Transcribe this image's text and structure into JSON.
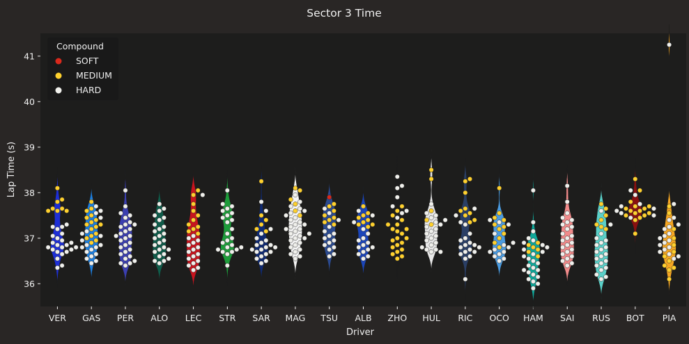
{
  "chart_data": {
    "type": "violin-swarm",
    "title": "Sector 3 Time",
    "xlabel": "Driver",
    "ylabel": "Lap Time (s)",
    "ylim": [
      35.5,
      41.5
    ],
    "yticks": [
      36,
      37,
      38,
      39,
      40,
      41
    ],
    "grid": false,
    "legend": {
      "title": "Compound",
      "position": "top-left",
      "entries": [
        {
          "name": "SOFT",
          "color": "#da291c"
        },
        {
          "name": "MEDIUM",
          "color": "#ffd12e"
        },
        {
          "name": "HARD",
          "color": "#f0f0ec"
        }
      ]
    },
    "drivers": [
      {
        "code": "VER",
        "color": "#1e2fd6",
        "medium": [
          38.1,
          37.85,
          37.8,
          37.65,
          37.65,
          37.6,
          37.6,
          37.6
        ],
        "hard": [
          37.3,
          37.25,
          37.25,
          37.2,
          37.1,
          37.05,
          37.0,
          36.95,
          36.9,
          36.9,
          36.85,
          36.85,
          36.8,
          36.8,
          36.8,
          36.75,
          36.75,
          36.7,
          36.7,
          36.65,
          36.55,
          36.4,
          36.35
        ]
      },
      {
        "code": "GAS",
        "color": "#1c7fe0",
        "medium": [
          37.8,
          37.65,
          37.6,
          37.5,
          37.45,
          37.4,
          37.35,
          37.3,
          37.3,
          37.25,
          37.2,
          37.1,
          37.05,
          37.0,
          36.95,
          36.9
        ],
        "hard": [
          37.7,
          37.6,
          37.55,
          37.45,
          37.15,
          37.1,
          37.05,
          36.95,
          36.85,
          36.85,
          36.8,
          36.8,
          36.75,
          36.7,
          36.65,
          36.6,
          36.55,
          36.5,
          36.45
        ]
      },
      {
        "code": "PER",
        "color": "#3b3fb0",
        "medium": [],
        "hard": [
          38.05,
          37.7,
          37.55,
          37.5,
          37.45,
          37.35,
          37.3,
          37.3,
          37.25,
          37.2,
          37.15,
          37.1,
          37.05,
          37.05,
          37.0,
          36.95,
          36.9,
          36.85,
          36.8,
          36.75,
          36.7,
          36.65,
          36.6,
          36.55,
          36.5,
          36.45,
          36.45,
          36.4
        ]
      },
      {
        "code": "ALO",
        "color": "#0f5c4a",
        "medium": [],
        "hard": [
          37.75,
          37.65,
          37.6,
          37.5,
          37.45,
          37.4,
          37.3,
          37.25,
          37.2,
          37.15,
          37.1,
          37.05,
          37.0,
          36.95,
          36.9,
          36.85,
          36.8,
          36.75,
          36.75,
          36.7,
          36.65,
          36.6,
          36.55,
          36.5,
          36.5,
          36.45
        ]
      },
      {
        "code": "LEC",
        "color": "#c8141e",
        "medium": [
          38.05,
          37.95,
          37.75,
          37.6,
          37.5,
          37.4,
          37.3,
          37.25,
          37.2,
          37.15,
          37.1
        ],
        "hard": [
          37.95,
          37.05,
          37.0,
          36.95,
          36.9,
          36.85,
          36.8,
          36.75,
          36.7,
          36.65,
          36.6,
          36.55,
          36.5,
          36.45,
          36.4,
          36.35,
          36.3
        ]
      },
      {
        "code": "STR",
        "color": "#1d9c3a",
        "medium": [],
        "hard": [
          38.05,
          37.75,
          37.7,
          37.65,
          37.6,
          37.55,
          37.5,
          37.45,
          37.4,
          37.35,
          37.2,
          37.1,
          37.0,
          36.95,
          36.9,
          36.85,
          36.8,
          36.8,
          36.75,
          36.75,
          36.7,
          36.7,
          36.65,
          36.4
        ]
      },
      {
        "code": "SAR",
        "color": "#0f2a73",
        "medium": [
          38.25,
          37.5,
          37.4,
          37.3,
          37.2,
          37.15
        ],
        "hard": [
          37.8,
          37.6,
          37.2,
          37.1,
          37.0,
          36.95,
          36.9,
          36.85,
          36.85,
          36.8,
          36.8,
          36.75,
          36.75,
          36.7,
          36.7,
          36.65,
          36.6,
          36.55,
          36.5,
          36.45
        ]
      },
      {
        "code": "MAG",
        "color": "#f4f4f4",
        "medium": [
          38.1,
          38.05,
          37.85,
          37.75,
          37.6,
          37.5
        ],
        "hard": [
          37.95,
          37.8,
          37.7,
          37.65,
          37.6,
          37.55,
          37.5,
          37.45,
          37.4,
          37.35,
          37.3,
          37.3,
          37.25,
          37.2,
          37.2,
          37.15,
          37.1,
          37.1,
          37.05,
          37.0,
          37.0,
          36.95,
          36.9,
          36.85,
          36.8,
          36.75,
          36.7,
          36.65,
          36.6,
          36.55
        ]
      },
      {
        "code": "TSU",
        "color": "#2b4a8f",
        "soft": [
          37.9
        ],
        "medium": [
          37.75,
          37.7,
          37.6,
          37.5,
          37.45,
          37.4,
          37.35,
          37.3
        ],
        "hard": [
          37.65,
          37.55,
          37.4,
          37.25,
          37.15,
          37.1,
          37.05,
          37.0,
          36.95,
          36.9,
          36.85,
          36.8,
          36.75,
          36.65,
          36.6
        ]
      },
      {
        "code": "ALB",
        "color": "#1b45b8",
        "medium": [
          37.7,
          37.55,
          37.5,
          37.45,
          37.4,
          37.35,
          37.3,
          37.3,
          37.25
        ],
        "hard": [
          37.6,
          37.5,
          37.35,
          37.2,
          37.1,
          37.0,
          36.95,
          36.9,
          36.85,
          36.8,
          36.8,
          36.75,
          36.7,
          36.65,
          36.6,
          36.55
        ]
      },
      {
        "code": "ZHO",
        "color": "#1c1c1c",
        "medium": [
          37.7,
          37.6,
          37.5,
          37.4,
          37.3,
          37.3,
          37.2,
          37.2,
          37.15,
          37.1,
          37.0,
          37.0,
          36.95,
          36.9,
          36.85,
          36.8,
          36.75,
          36.7,
          36.65,
          36.6,
          36.55
        ],
        "hard": [
          38.35,
          38.15,
          38.1,
          37.9,
          37.7,
          37.6,
          37.55,
          37.45
        ]
      },
      {
        "code": "HUL",
        "color": "#e8e8e8",
        "medium": [
          38.5,
          38.3,
          37.6,
          37.4,
          37.3
        ],
        "hard": [
          37.75,
          37.55,
          37.5,
          37.45,
          37.4,
          37.35,
          37.3,
          37.25,
          37.2,
          37.15,
          37.1,
          37.05,
          37.0,
          36.95,
          36.9,
          36.85,
          36.8,
          36.75,
          36.75,
          36.7,
          36.7
        ]
      },
      {
        "code": "RIC",
        "color": "#2a3f66",
        "medium": [
          38.3,
          38.25,
          38.0,
          37.65,
          37.6,
          37.55,
          37.5,
          37.4,
          37.35
        ],
        "hard": [
          37.65,
          37.5,
          37.35,
          37.3,
          37.1,
          37.0,
          36.95,
          36.9,
          36.85,
          36.85,
          36.8,
          36.8,
          36.75,
          36.7,
          36.7,
          36.65,
          36.6,
          36.55,
          36.1
        ]
      },
      {
        "code": "OCO",
        "color": "#4a9be0",
        "medium": [
          38.1,
          37.55,
          37.45,
          37.4,
          37.3,
          37.25,
          37.2,
          37.1,
          37.0,
          36.9,
          36.8
        ],
        "hard": [
          37.4,
          37.35,
          37.3,
          37.1,
          36.9,
          36.85,
          36.8,
          36.75,
          36.7,
          36.7,
          36.65,
          36.6,
          36.55,
          36.5
        ]
      },
      {
        "code": "HAM",
        "color": "#0fa89a",
        "medium": [
          36.9,
          36.85,
          36.8,
          36.75,
          36.7,
          36.6
        ],
        "hard": [
          38.05,
          37.35,
          37.15,
          37.0,
          36.95,
          36.9,
          36.85,
          36.8,
          36.75,
          36.7,
          36.65,
          36.6,
          36.55,
          36.5,
          36.45,
          36.4,
          36.35,
          36.3,
          36.3,
          36.25,
          36.2,
          36.15,
          36.1,
          36.05,
          36.0,
          35.9
        ]
      },
      {
        "code": "SAI",
        "color": "#f08a8a",
        "medium": [],
        "hard": [
          38.15,
          37.8,
          37.55,
          37.45,
          37.4,
          37.35,
          37.3,
          37.25,
          37.2,
          37.1,
          37.05,
          37.0,
          36.95,
          36.9,
          36.85,
          36.8,
          36.75,
          36.7,
          36.65,
          36.6,
          36.55,
          36.5,
          36.45,
          36.4
        ]
      },
      {
        "code": "RUS",
        "color": "#5ad0c8",
        "medium": [
          37.75,
          37.65,
          37.5,
          37.4,
          37.3,
          37.25,
          37.2
        ],
        "hard": [
          37.6,
          37.3,
          37.1,
          37.0,
          36.95,
          36.9,
          36.85,
          36.8,
          36.75,
          36.7,
          36.65,
          36.6,
          36.55,
          36.5,
          36.45,
          36.4,
          36.35,
          36.3,
          36.2,
          36.15,
          36.1
        ]
      },
      {
        "code": "BOT",
        "color": "#8a1010",
        "medium": [
          38.3,
          38.05,
          37.8,
          37.7,
          37.7,
          37.65,
          37.65,
          37.6,
          37.6,
          37.55,
          37.55,
          37.5,
          37.5,
          37.45,
          37.4,
          37.1
        ],
        "hard": [
          38.05,
          37.95,
          37.75,
          37.7,
          37.65,
          37.6,
          37.55,
          37.5,
          37.45
        ]
      },
      {
        "code": "PIA",
        "color": "#f5a623",
        "medium": [
          37.7,
          37.55,
          37.2,
          37.0,
          36.85,
          36.7,
          36.6,
          36.5,
          36.4,
          36.35,
          36.3,
          36.1
        ],
        "hard": [
          41.25,
          37.75,
          37.45,
          37.4,
          37.3,
          37.25,
          37.2,
          37.1,
          37.05,
          37.0,
          36.95,
          36.9,
          36.85,
          36.8,
          36.75,
          36.7,
          36.65,
          36.6,
          36.55
        ]
      }
    ]
  }
}
